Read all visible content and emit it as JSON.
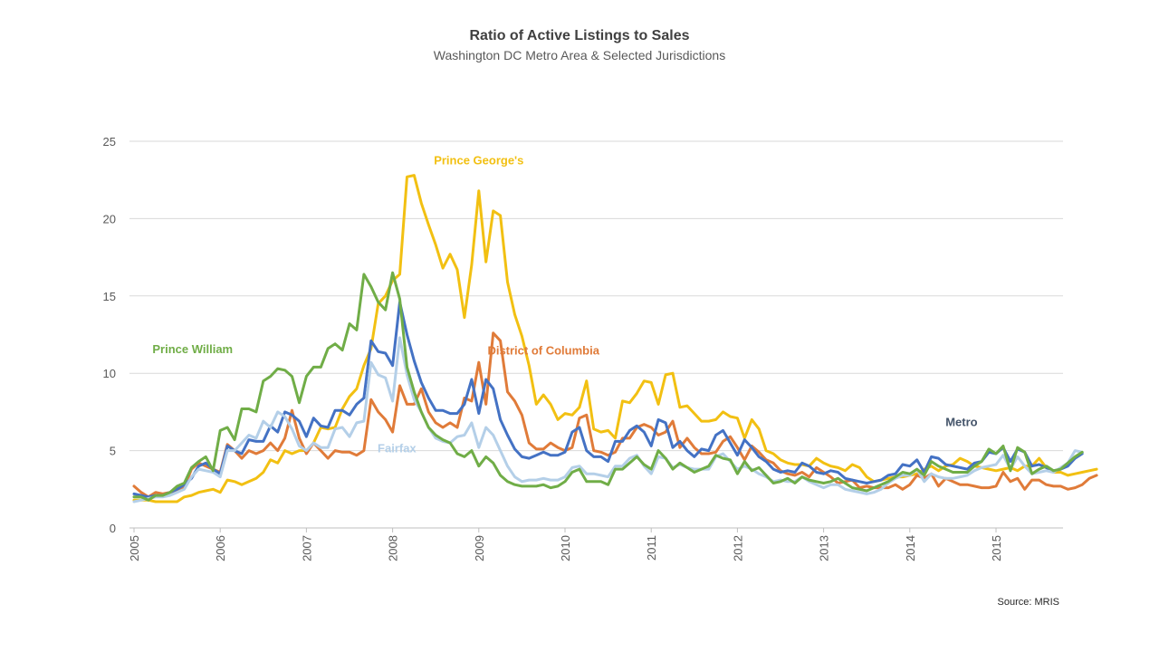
{
  "chart_data": {
    "type": "line",
    "title": "Ratio of Active Listings to Sales",
    "subtitle": "Washington DC Metro Area & Selected Jurisdictions",
    "source": "Source: MRIS",
    "ylim": [
      0,
      25
    ],
    "yticks": [
      "0",
      "5",
      "10",
      "15",
      "20",
      "25"
    ],
    "xlim": [
      2005,
      2015.83
    ],
    "xticks": [
      "2005",
      "2006",
      "2007",
      "2008",
      "2009",
      "2010",
      "2011",
      "2012",
      "2013",
      "2014",
      "2015"
    ],
    "grid": true,
    "x_start": 2005,
    "x_step_months": 1,
    "series": [
      {
        "name": "Prince George's",
        "color": "#F2C012",
        "label_at": [
          2009,
          23.5
        ],
        "values": [
          1.8,
          1.8,
          1.8,
          1.7,
          1.7,
          1.7,
          1.7,
          2.0,
          2.1,
          2.3,
          2.4,
          2.5,
          2.3,
          3.1,
          3.0,
          2.8,
          3.0,
          3.2,
          3.6,
          4.4,
          4.2,
          5.0,
          4.8,
          5.0,
          5.0,
          5.5,
          6.5,
          6.4,
          6.5,
          7.7,
          8.5,
          9.0,
          10.5,
          11.6,
          14.5,
          15.0,
          16.0,
          16.4,
          22.7,
          22.8,
          21.0,
          19.6,
          18.3,
          16.8,
          17.7,
          16.7,
          13.6,
          17.0,
          21.8,
          17.2,
          20.5,
          20.2,
          15.9,
          13.8,
          12.4,
          10.5,
          8.0,
          8.6,
          8.0,
          7.0,
          7.4,
          7.3,
          7.8,
          9.5,
          6.4,
          6.2,
          6.3,
          5.8,
          8.2,
          8.1,
          8.7,
          9.5,
          9.4,
          8.0,
          9.9,
          10.0,
          7.8,
          7.9,
          7.4,
          6.9,
          6.9,
          7.0,
          7.5,
          7.2,
          7.1,
          5.8,
          7.0,
          6.4,
          5.0,
          4.8,
          4.4,
          4.2,
          4.1,
          4.1,
          4.0,
          4.5,
          4.2,
          4.0,
          3.9,
          3.7,
          4.1,
          3.9,
          3.3,
          3.0,
          3.1,
          3.2,
          3.3,
          3.3,
          3.4,
          3.5,
          3.8,
          4.0,
          3.7,
          4.0,
          4.1,
          4.5,
          4.3,
          4.0,
          3.9,
          3.8,
          3.7,
          3.8,
          3.9,
          3.7,
          4.0,
          4.0,
          4.5,
          3.9,
          3.6,
          3.6,
          3.4,
          3.5,
          3.6,
          3.7,
          3.8
        ]
      },
      {
        "name": "District of Columbia",
        "color": "#E07B39",
        "label_at": [
          2009.75,
          11.2
        ],
        "values": [
          2.7,
          2.3,
          2.0,
          2.3,
          2.2,
          2.3,
          2.4,
          2.6,
          3.8,
          4.2,
          4.0,
          3.8,
          3.6,
          5.4,
          5.0,
          4.5,
          5.0,
          4.8,
          5.0,
          5.5,
          5.0,
          5.8,
          7.6,
          5.8,
          4.8,
          5.5,
          5.0,
          4.5,
          5.0,
          4.9,
          4.9,
          4.7,
          5.0,
          8.3,
          7.5,
          7.0,
          6.2,
          9.2,
          8.0,
          8.0,
          9.0,
          7.5,
          6.8,
          6.5,
          6.8,
          6.5,
          8.4,
          8.2,
          10.7,
          8.0,
          12.6,
          12.1,
          8.8,
          8.2,
          7.3,
          5.5,
          5.1,
          5.1,
          5.5,
          5.2,
          5.0,
          5.2,
          7.1,
          7.3,
          5.0,
          4.9,
          4.7,
          4.9,
          5.8,
          5.8,
          6.5,
          6.7,
          6.5,
          6.0,
          6.2,
          6.9,
          5.2,
          5.8,
          5.2,
          4.8,
          4.8,
          4.9,
          5.6,
          5.9,
          5.2,
          4.4,
          5.3,
          4.9,
          4.4,
          4.2,
          3.7,
          3.5,
          3.4,
          3.6,
          3.3,
          3.9,
          3.6,
          3.3,
          2.9,
          3.0,
          3.1,
          2.6,
          2.7,
          2.6,
          2.6,
          2.6,
          2.8,
          2.5,
          2.8,
          3.4,
          3.2,
          3.5,
          2.7,
          3.2,
          3.0,
          2.8,
          2.8,
          2.7,
          2.6,
          2.6,
          2.7,
          3.6,
          3.0,
          3.2,
          2.5,
          3.1,
          3.1,
          2.8,
          2.7,
          2.7,
          2.5,
          2.6,
          2.8,
          3.2,
          3.4
        ]
      },
      {
        "name": "Metro",
        "color": "#4472C4",
        "label_at": [
          2014.6,
          6.6
        ],
        "values": [
          2.2,
          2.1,
          2.0,
          2.1,
          2.1,
          2.3,
          2.5,
          2.8,
          3.2,
          4.0,
          4.2,
          3.8,
          3.5,
          5.3,
          5.0,
          4.8,
          5.7,
          5.6,
          5.6,
          6.6,
          6.2,
          7.5,
          7.3,
          6.9,
          5.9,
          7.1,
          6.6,
          6.5,
          7.6,
          7.6,
          7.3,
          8.0,
          8.4,
          12.1,
          11.4,
          11.3,
          10.5,
          14.6,
          12.5,
          10.8,
          9.4,
          8.4,
          7.6,
          7.6,
          7.4,
          7.4,
          8.0,
          9.6,
          7.4,
          9.6,
          9.0,
          7.0,
          6.0,
          5.1,
          4.6,
          4.5,
          4.7,
          4.9,
          4.7,
          4.7,
          4.9,
          6.2,
          6.5,
          5.0,
          4.6,
          4.6,
          4.3,
          5.6,
          5.6,
          6.3,
          6.6,
          6.2,
          5.3,
          7.0,
          6.8,
          5.2,
          5.6,
          5.0,
          4.6,
          5.1,
          5.0,
          6.0,
          6.3,
          5.5,
          4.7,
          5.7,
          5.2,
          4.6,
          4.3,
          3.8,
          3.6,
          3.7,
          3.6,
          4.2,
          4.0,
          3.6,
          3.5,
          3.7,
          3.6,
          3.2,
          3.1,
          3.0,
          2.9,
          3.0,
          3.1,
          3.4,
          3.5,
          4.1,
          4.0,
          4.4,
          3.6,
          4.6,
          4.5,
          4.1,
          4.0,
          3.9,
          3.8,
          4.2,
          4.3,
          4.9,
          4.8,
          5.2,
          4.3,
          5.1,
          4.9,
          4.0,
          4.1,
          3.9,
          3.7,
          3.8,
          4.0,
          4.5,
          4.8
        ]
      },
      {
        "name": "Fairfax",
        "color": "#B4CFE8",
        "label_at": [
          2008.05,
          4.9
        ],
        "values": [
          1.7,
          1.8,
          1.9,
          2.0,
          2.0,
          2.1,
          2.3,
          2.5,
          3.3,
          3.8,
          3.7,
          3.6,
          3.3,
          5.0,
          5.0,
          5.5,
          6.0,
          5.8,
          6.9,
          6.5,
          7.5,
          7.2,
          6.4,
          5.3,
          5.0,
          5.5,
          5.2,
          5.2,
          6.4,
          6.5,
          5.9,
          6.8,
          6.9,
          10.7,
          9.9,
          9.7,
          8.2,
          12.3,
          9.9,
          8.3,
          7.5,
          6.5,
          5.8,
          5.6,
          5.5,
          5.9,
          6.0,
          6.8,
          5.2,
          6.5,
          6.0,
          5.0,
          4.0,
          3.3,
          3.0,
          3.1,
          3.1,
          3.2,
          3.1,
          3.1,
          3.3,
          3.9,
          4.0,
          3.5,
          3.5,
          3.4,
          3.3,
          4.0,
          4.0,
          4.5,
          4.7,
          4.0,
          3.5,
          4.6,
          4.5,
          3.9,
          4.1,
          3.9,
          3.8,
          3.8,
          3.8,
          4.6,
          4.8,
          4.3,
          3.8,
          4.0,
          3.8,
          3.5,
          3.3,
          3.0,
          3.1,
          3.0,
          3.0,
          3.3,
          3.0,
          2.8,
          2.6,
          2.8,
          2.8,
          2.5,
          2.4,
          2.3,
          2.2,
          2.3,
          2.5,
          2.9,
          3.2,
          3.4,
          3.4,
          3.8,
          3.0,
          3.5,
          3.3,
          3.2,
          3.2,
          3.3,
          3.4,
          3.7,
          3.9,
          4.0,
          4.1,
          4.7,
          3.8,
          4.6,
          4.0,
          3.5,
          3.6,
          3.7,
          3.6,
          3.9,
          4.2,
          5.0,
          4.9
        ]
      },
      {
        "name": "Prince William",
        "color": "#70AD47",
        "label_at": [
          2005.68,
          11.3
        ],
        "values": [
          2.0,
          2.0,
          1.8,
          2.1,
          2.1,
          2.3,
          2.7,
          2.9,
          3.9,
          4.3,
          4.6,
          3.7,
          6.3,
          6.5,
          5.7,
          7.7,
          7.7,
          7.5,
          9.5,
          9.8,
          10.3,
          10.2,
          9.8,
          8.1,
          9.8,
          10.4,
          10.4,
          11.6,
          11.9,
          11.5,
          13.2,
          12.8,
          16.4,
          15.6,
          14.6,
          14.1,
          16.5,
          14.8,
          10.4,
          8.8,
          7.5,
          6.5,
          6.0,
          5.7,
          5.5,
          4.8,
          4.6,
          5.0,
          4.0,
          4.6,
          4.2,
          3.4,
          3.0,
          2.8,
          2.7,
          2.7,
          2.7,
          2.8,
          2.6,
          2.7,
          3.0,
          3.6,
          3.8,
          3.0,
          3.0,
          3.0,
          2.8,
          3.8,
          3.8,
          4.2,
          4.6,
          4.1,
          3.8,
          5.0,
          4.5,
          3.8,
          4.2,
          3.9,
          3.6,
          3.8,
          4.0,
          4.7,
          4.5,
          4.4,
          3.5,
          4.3,
          3.7,
          3.9,
          3.4,
          2.9,
          3.0,
          3.2,
          2.9,
          3.3,
          3.1,
          3.0,
          2.9,
          3.0,
          3.2,
          2.9,
          2.6,
          2.5,
          2.4,
          2.6,
          2.8,
          3.0,
          3.3,
          3.6,
          3.5,
          3.8,
          3.4,
          4.3,
          4.0,
          3.8,
          3.6,
          3.6,
          3.6,
          4.0,
          4.3,
          5.1,
          4.8,
          5.3,
          3.7,
          5.2,
          4.9,
          3.5,
          3.8,
          4.0,
          3.7,
          3.8,
          4.2,
          4.6,
          4.9
        ]
      }
    ]
  }
}
